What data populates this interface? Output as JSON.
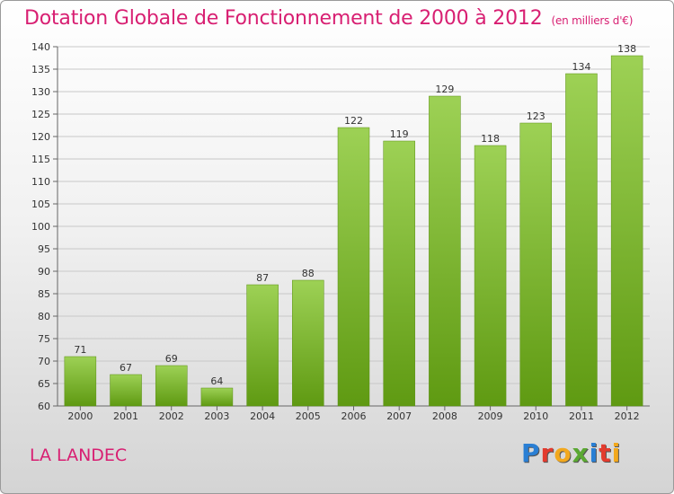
{
  "header": {
    "title": "Dotation Globale de Fonctionnement de 2000 à 2012",
    "unit": "(en milliers d'€)"
  },
  "footer": {
    "commune": "LA LANDEC",
    "logo_text": "Proxiti",
    "logo_colors": [
      "#2a7fd4",
      "#e33b2e",
      "#f2a81d",
      "#5aa832",
      "#2a7fd4",
      "#e33b2e",
      "#f2a81d"
    ]
  },
  "colors": {
    "title": "#d81f72",
    "bar_light": "#9dd155",
    "bar_dark": "#5f9a12",
    "grid": "#c8c8c8"
  },
  "chart_data": {
    "type": "bar",
    "title": "Dotation Globale de Fonctionnement de 2000 à 2012",
    "xlabel": "",
    "ylabel": "",
    "categories": [
      "2000",
      "2001",
      "2002",
      "2003",
      "2004",
      "2005",
      "2006",
      "2007",
      "2008",
      "2009",
      "2010",
      "2011",
      "2012"
    ],
    "values": [
      71,
      67,
      69,
      64,
      87,
      88,
      122,
      119,
      129,
      118,
      123,
      134,
      138
    ],
    "ylim": [
      60,
      140
    ],
    "yticks": [
      60,
      65,
      70,
      75,
      80,
      85,
      90,
      95,
      100,
      105,
      110,
      115,
      120,
      125,
      130,
      135,
      140
    ],
    "grid": true,
    "legend": "none"
  }
}
